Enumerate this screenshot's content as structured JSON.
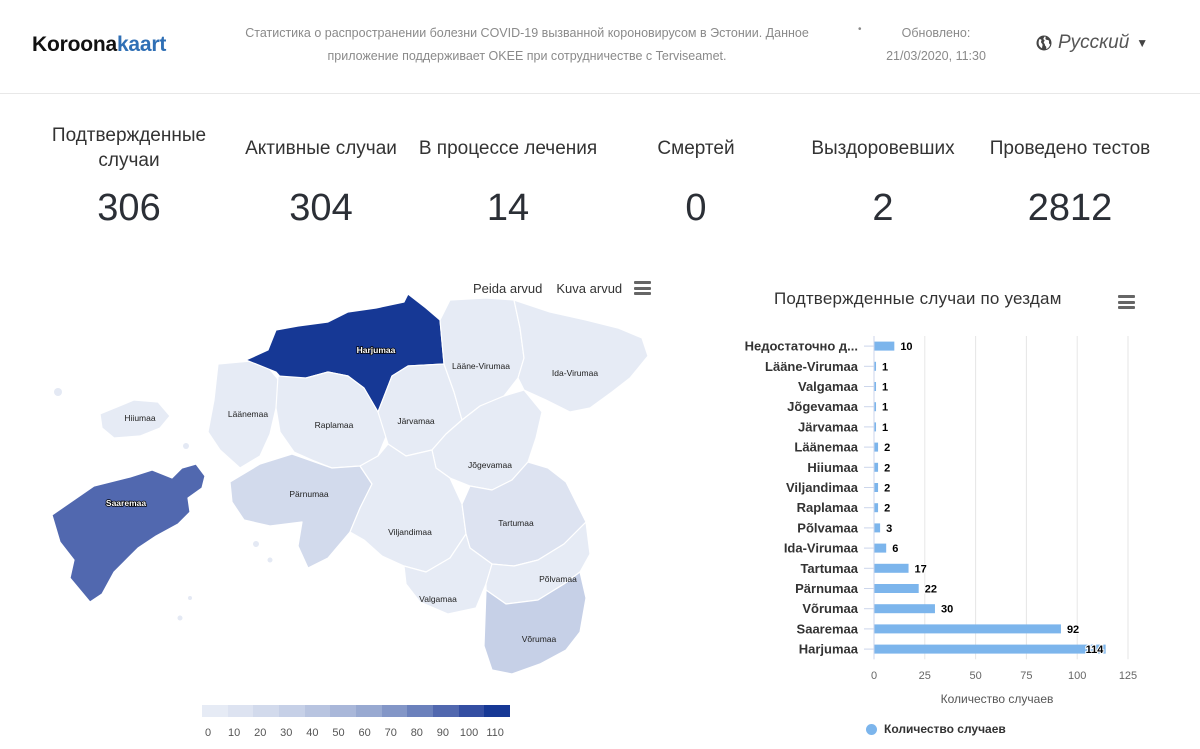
{
  "header": {
    "logo_main": "Koroona",
    "logo_accent": "kaart",
    "about": "Статистика о распространении болезни COVID-19 вызванной короновирусом в Эстонии. Данное приложение поддерживает OKEE при сотрудничестве с Terviseamet.",
    "separator": "•",
    "updated_label": "Обновлено:",
    "updated_value": "21/03/2020, 11:30",
    "language": "Русский",
    "language_icon": "globe-icon"
  },
  "stats": [
    {
      "label": "Подтвержденные случаи",
      "value": "306"
    },
    {
      "label": "Активные случаи",
      "value": "304"
    },
    {
      "label": "В процессе лечения",
      "value": "14"
    },
    {
      "label": "Смертей",
      "value": "0"
    },
    {
      "label": "Выздоровевших",
      "value": "2"
    },
    {
      "label": "Проведено тестов",
      "value": "2812"
    }
  ],
  "map": {
    "hide_numbers": "Peida arvud",
    "show_numbers": "Kuva arvud",
    "menu_icon": "menu-icon",
    "regions": [
      {
        "name": "Harjumaa",
        "value": 114
      },
      {
        "name": "Saaremaa",
        "value": 92
      },
      {
        "name": "Võrumaa",
        "value": 30
      },
      {
        "name": "Pärnumaa",
        "value": 22
      },
      {
        "name": "Tartumaa",
        "value": 17
      },
      {
        "name": "Ida-Virumaa",
        "value": 6
      },
      {
        "name": "Põlvamaa",
        "value": 3
      },
      {
        "name": "Raplamaa",
        "value": 2
      },
      {
        "name": "Viljandimaa",
        "value": 2
      },
      {
        "name": "Hiiumaa",
        "value": 2
      },
      {
        "name": "Läänemaa",
        "value": 2
      },
      {
        "name": "Järvamaa",
        "value": 1
      },
      {
        "name": "Jõgevamaa",
        "value": 1
      },
      {
        "name": "Valgamaa",
        "value": 1
      },
      {
        "name": "Lääne-Virumaa",
        "value": 1
      }
    ],
    "legend_ticks": [
      "0",
      "10",
      "20",
      "30",
      "40",
      "50",
      "60",
      "70",
      "80",
      "90",
      "100",
      "110"
    ],
    "scale_colors": [
      "#e6ebf5",
      "#dde3f1",
      "#d2daec",
      "#c6d0e7",
      "#b8c4e0",
      "#a9b7d9",
      "#98a9d1",
      "#8396c7",
      "#6b81bc",
      "#5168af",
      "#344ea2",
      "#163895"
    ],
    "scale_max": 120
  },
  "chart": {
    "menu_icon": "menu-icon",
    "legend_label": "Количество случаев",
    "bar_color": "#7cb5ec"
  },
  "chart_data": {
    "type": "bar",
    "orientation": "horizontal",
    "title": "Подтвержденные случаи по уездам",
    "xlabel": "Количество случаев",
    "ylabel": "",
    "categories": [
      "Недостаточно д...",
      "Lääne-Virumaa",
      "Valgamaa",
      "Jõgevamaa",
      "Järvamaa",
      "Läänemaa",
      "Hiiumaa",
      "Viljandimaa",
      "Raplamaa",
      "Põlvamaa",
      "Ida-Virumaa",
      "Tartumaa",
      "Pärnumaa",
      "Võrumaa",
      "Saaremaa",
      "Harjumaa"
    ],
    "series": [
      {
        "name": "Количество случаев",
        "values": [
          10,
          1,
          1,
          1,
          1,
          2,
          2,
          2,
          2,
          3,
          6,
          17,
          22,
          30,
          92,
          114
        ]
      }
    ],
    "xlim": [
      0,
      125
    ],
    "xticks": [
      "0",
      "25",
      "50",
      "75",
      "100",
      "125"
    ],
    "grid": true,
    "legend": "bottom"
  }
}
